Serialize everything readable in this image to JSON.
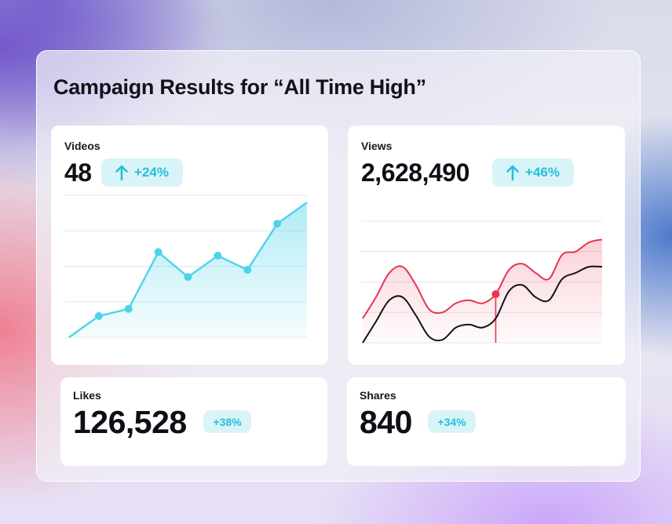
{
  "title": "Campaign Results for “All Time High”",
  "colors": {
    "teal": "#22c1da",
    "red": "#e8344f",
    "dark": "#111318"
  },
  "cards": {
    "videos": {
      "label": "Videos",
      "value": "48",
      "change": "+24%",
      "change_icon": "arrow-up-icon"
    },
    "views": {
      "label": "Views",
      "value": "2,628,490",
      "change": "+46%",
      "change_icon": "arrow-up-icon"
    },
    "likes": {
      "label": "Likes",
      "value": "126,528",
      "change": "+38%"
    },
    "shares": {
      "label": "Shares",
      "value": "840",
      "change": "+34%"
    }
  },
  "chart_data": [
    {
      "type": "area",
      "x": [
        1,
        2,
        3,
        4,
        5,
        6,
        7,
        8,
        9
      ],
      "series": [
        {
          "values": [
            0,
            6,
            8,
            24,
            17,
            23,
            19,
            32,
            38
          ]
        }
      ],
      "ylim": [
        0,
        40
      ],
      "grid": true,
      "markers": true
    },
    {
      "type": "line",
      "x": [
        1,
        2,
        3,
        4,
        5,
        6,
        7,
        8,
        9,
        10,
        11,
        12,
        13,
        14,
        15,
        16,
        17,
        18,
        19
      ],
      "series": [
        {
          "values": [
            8,
            15,
            23,
            25,
            19,
            11,
            10,
            13,
            14,
            13,
            16,
            24,
            26,
            23,
            21,
            29,
            30,
            33,
            34
          ]
        },
        {
          "values": [
            0,
            7,
            14,
            15,
            9,
            2,
            1,
            5,
            6,
            5,
            8,
            17,
            19,
            15,
            14,
            21,
            23,
            25,
            25
          ]
        }
      ],
      "highlight_x": 11,
      "ylim": [
        0,
        40
      ],
      "grid": true
    }
  ]
}
